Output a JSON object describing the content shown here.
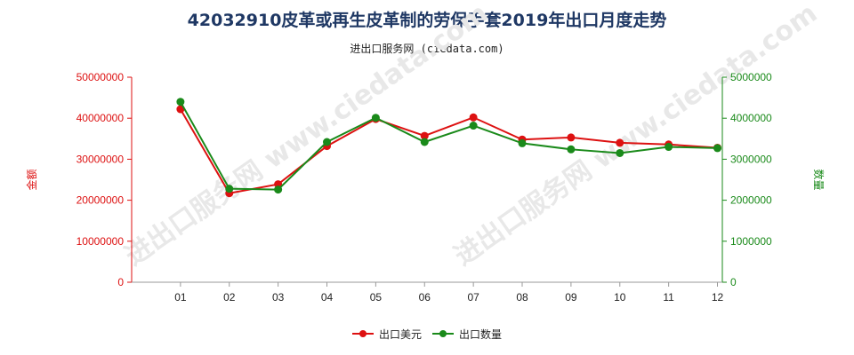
{
  "title": "42032910皮革或再生皮革制的劳保手套2019年出口月度走势",
  "subtitle": "进出口服务网 (ciedata.com)",
  "watermark": "进出口服务网 www.ciedata.com",
  "colors": {
    "left_axis": "#dd1111",
    "right_axis": "#1a8a1a",
    "series_value": "#dd1111",
    "series_quantity": "#1a8a1a",
    "title": "#1f3864"
  },
  "chart_data": {
    "type": "line",
    "title": "42032910皮革或再生皮革制的劳保手套2019年出口月度走势",
    "x": [
      "01",
      "02",
      "03",
      "04",
      "05",
      "06",
      "07",
      "08",
      "09",
      "10",
      "11",
      "12"
    ],
    "ylabel": "金额",
    "y2label": "数量",
    "ylim": [
      0,
      50000000
    ],
    "y2lim": [
      0,
      5000000
    ],
    "yticks": [
      "0",
      "10000000",
      "20000000",
      "30000000",
      "40000000",
      "50000000"
    ],
    "y2ticks": [
      "0",
      "1000000",
      "2000000",
      "3000000",
      "4000000",
      "5000000"
    ],
    "grid": false,
    "legend": "bottom-center",
    "series": [
      {
        "name": "出口美元",
        "axis": "left",
        "values": [
          42200000,
          21700000,
          23900000,
          33200000,
          39800000,
          35700000,
          40200000,
          34800000,
          35300000,
          34000000,
          33600000,
          32800000
        ]
      },
      {
        "name": "出口数量",
        "axis": "right",
        "values": [
          4400000,
          2280000,
          2260000,
          3420000,
          4010000,
          3420000,
          3820000,
          3390000,
          3240000,
          3150000,
          3300000,
          3270000
        ]
      }
    ]
  }
}
